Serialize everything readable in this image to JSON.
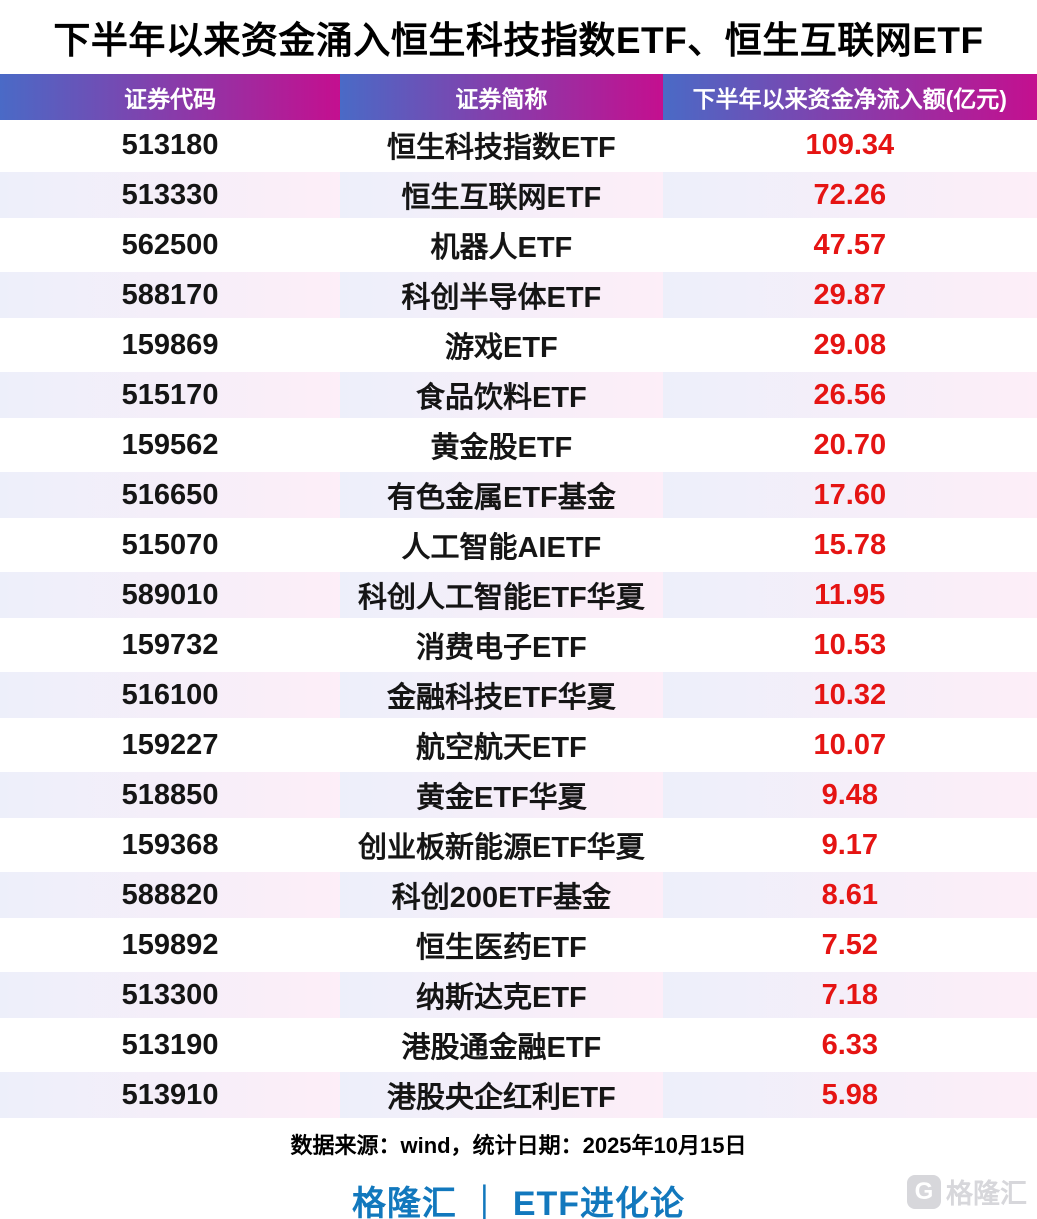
{
  "title": "下半年以来资金涌入恒生科技指数ETF、恒生互联网ETF",
  "table": {
    "headers": [
      "证券代码",
      "证券简称",
      "下半年以来资金净流入额(亿元)"
    ],
    "rows": [
      {
        "code": "513180",
        "name": "恒生科技指数ETF",
        "value": "109.34"
      },
      {
        "code": "513330",
        "name": "恒生互联网ETF",
        "value": "72.26"
      },
      {
        "code": "562500",
        "name": "机器人ETF",
        "value": "47.57"
      },
      {
        "code": "588170",
        "name": "科创半导体ETF",
        "value": "29.87"
      },
      {
        "code": "159869",
        "name": "游戏ETF",
        "value": "29.08"
      },
      {
        "code": "515170",
        "name": "食品饮料ETF",
        "value": "26.56"
      },
      {
        "code": "159562",
        "name": "黄金股ETF",
        "value": "20.70"
      },
      {
        "code": "516650",
        "name": "有色金属ETF基金",
        "value": "17.60"
      },
      {
        "code": "515070",
        "name": "人工智能AIETF",
        "value": "15.78"
      },
      {
        "code": "589010",
        "name": "科创人工智能ETF华夏",
        "value": "11.95"
      },
      {
        "code": "159732",
        "name": "消费电子ETF",
        "value": "10.53"
      },
      {
        "code": "516100",
        "name": "金融科技ETF华夏",
        "value": "10.32"
      },
      {
        "code": "159227",
        "name": "航空航天ETF",
        "value": "10.07"
      },
      {
        "code": "518850",
        "name": "黄金ETF华夏",
        "value": "9.48"
      },
      {
        "code": "159368",
        "name": "创业板新能源ETF华夏",
        "value": "9.17"
      },
      {
        "code": "588820",
        "name": "科创200ETF基金",
        "value": "8.61"
      },
      {
        "code": "159892",
        "name": "恒生医药ETF",
        "value": "7.52"
      },
      {
        "code": "513300",
        "name": "纳斯达克ETF",
        "value": "7.18"
      },
      {
        "code": "513190",
        "name": "港股通金融ETF",
        "value": "6.33"
      },
      {
        "code": "513910",
        "name": "港股央企红利ETF",
        "value": "5.98"
      }
    ]
  },
  "footer": {
    "source": "数据来源：wind，统计日期：2025年10月15日",
    "brand": "格隆汇 ｜ ETF进化论",
    "watermark_text": "格隆汇",
    "watermark_logo_letter": "G"
  },
  "colors": {
    "header_gradient_start": "#4a6ac6",
    "header_gradient_end": "#c40f8f",
    "stripe_gradient_start": "#edeffa",
    "stripe_gradient_end": "#fdeef8",
    "value_red": "#e51413",
    "brand_blue": "#1278bd",
    "watermark_gray": "#d7d7db",
    "title_black": "#000000"
  }
}
